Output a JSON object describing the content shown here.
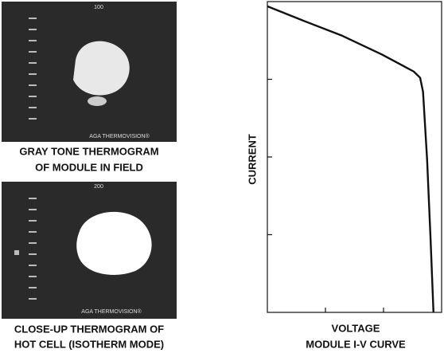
{
  "figures": [
    {
      "scale_label": "100",
      "brand": "AGA THERMOVISION®",
      "caption": [
        "GRAY TONE THERMOGRAM",
        "OF MODULE IN FIELD"
      ]
    },
    {
      "scale_label": "200",
      "brand": "AGA THERMOVISION®",
      "caption": [
        "CLOSE-UP THERMOGRAM OF",
        "HOT CELL (ISOTHERM MODE)"
      ]
    }
  ],
  "chart_data": {
    "type": "line",
    "x_label": "VOLTAGE",
    "y_label": "CURRENT",
    "caption": "MODULE I-V CURVE",
    "x": [
      0,
      0.6,
      1.29,
      1.97,
      2.52,
      2.63,
      2.68,
      2.75,
      2.81,
      2.86
    ],
    "values": [
      3.94,
      3.76,
      3.56,
      3.32,
      3.1,
      3.02,
      2.84,
      1.97,
      0.94,
      0
    ],
    "color": "#111111",
    "xlim": [
      0,
      3
    ],
    "ylim": [
      0,
      4
    ],
    "xticks": [
      1,
      2
    ],
    "yticks": [
      1,
      2,
      3
    ]
  }
}
